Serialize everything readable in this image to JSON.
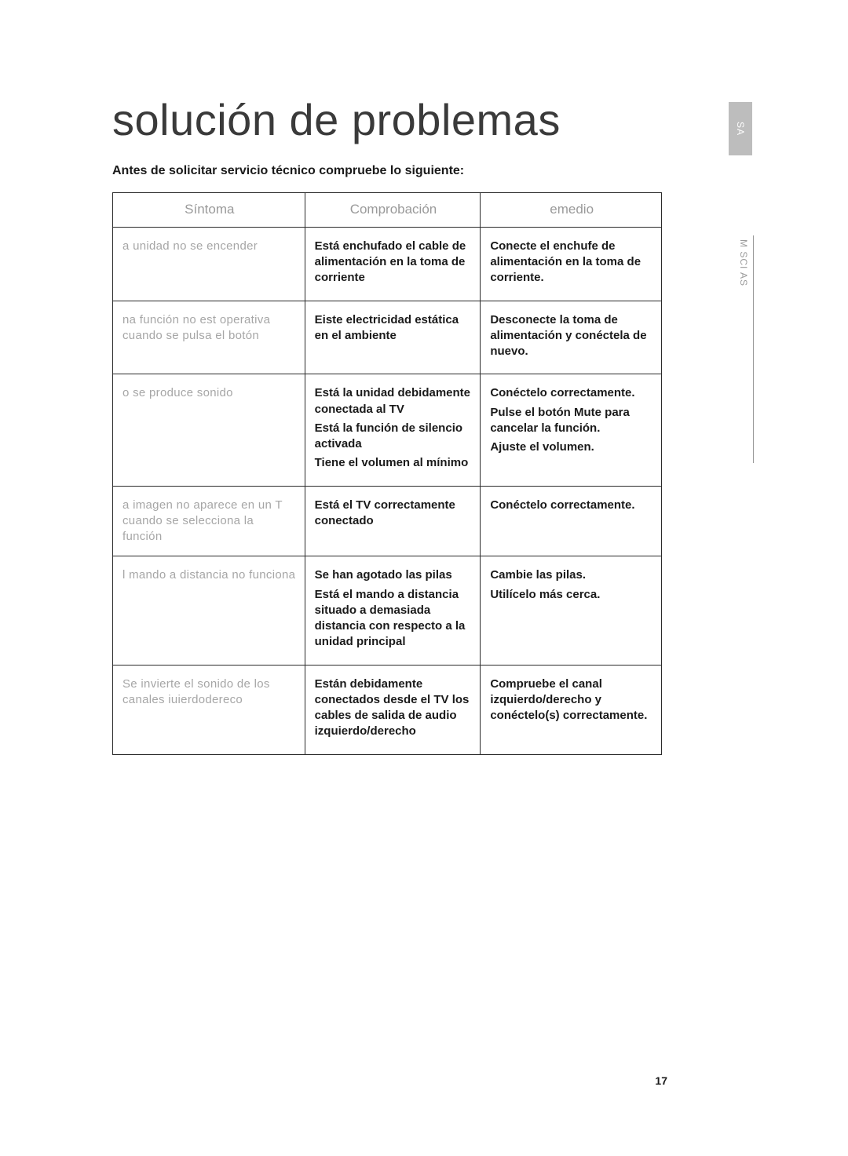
{
  "title": "solución de problemas",
  "subtitle": "Antes de solicitar servicio técnico compruebe lo siguiente:",
  "side_tab": "SA",
  "side_label": "M SCI AS",
  "page_number": "17",
  "table": {
    "headers": [
      "Síntoma",
      "Comprobación",
      "emedio"
    ],
    "rows": [
      {
        "symptom": "a   unidad   no se encender",
        "checks": [
          "Está enchufado el cable de alimentación en la toma de corriente"
        ],
        "remedies": [
          "Conecte el enchufe de alimentación en la toma de corriente."
        ]
      },
      {
        "symptom": "na    función   no  est    operativa cuando   se pulsa   el botón",
        "checks": [
          "Eiste electricidad estática en el ambiente"
        ],
        "remedies": [
          "Desconecte la toma de alimentación y conéctela de nuevo."
        ]
      },
      {
        "symptom": "o    se produce   sonido",
        "checks": [
          "Está la unidad debidamente conectada al TV",
          "Está la función de silencio activada",
          "Tiene el volumen al mínimo"
        ],
        "remedies": [
          "Conéctelo correctamente.",
          "Pulse el botón Mute para cancelar la función.",
          "Ajuste el volumen."
        ]
      },
      {
        "symptom": "a   imagen   no aparece   en un T cuando   se selecciona    la función",
        "checks": [
          "Está el TV correctamente conectado"
        ],
        "remedies": [
          "Conéctelo correctamente."
        ]
      },
      {
        "symptom": "l    mando   a distancia    no funciona",
        "checks": [
          "Se han agotado las pilas",
          "Está el mando a distancia situado a demasiada distancia con respecto a la unidad principal"
        ],
        "remedies": [
          "Cambie las pilas.",
          "Utilícelo más cerca."
        ]
      },
      {
        "symptom": "Se invierte    el sonido   de los canales   iuierdodereco",
        "checks": [
          "Están debidamente conectados desde el TV los cables de salida de audio izquierdo/derecho"
        ],
        "remedies": [
          "Compruebe el canal izquierdo/derecho y conéctelo(s) correctamente."
        ]
      }
    ]
  }
}
